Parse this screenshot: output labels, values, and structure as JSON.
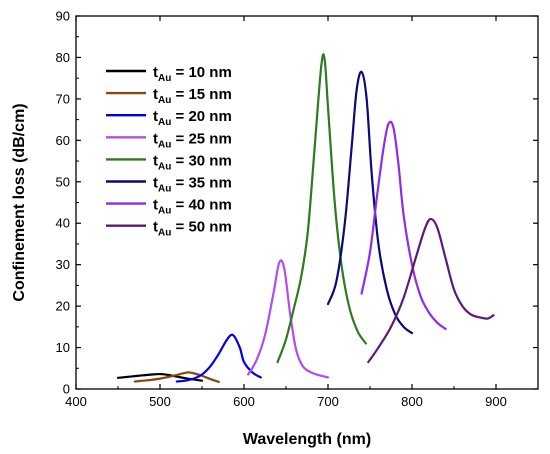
{
  "chart_data": {
    "type": "line",
    "xlabel": "Wavelength (nm)",
    "ylabel": "Confinement loss (dB/cm)",
    "xlim": [
      400,
      950
    ],
    "ylim": [
      0,
      90
    ],
    "xticks": [
      400,
      500,
      600,
      700,
      800,
      900
    ],
    "yticks": [
      0,
      10,
      20,
      30,
      40,
      50,
      60,
      70,
      80,
      90
    ],
    "legend_position": "top-left",
    "series": [
      {
        "name": "t_Au = 10 nm",
        "label_main": "t",
        "label_sub": "Au",
        "label_rest": " = 10 nm",
        "color": "#000000",
        "x": [
          450,
          460,
          470,
          480,
          490,
          500,
          510,
          520,
          530,
          540,
          550
        ],
        "y": [
          2.7,
          2.9,
          3.1,
          3.3,
          3.5,
          3.6,
          3.4,
          3.0,
          2.6,
          2.3,
          2.0
        ]
      },
      {
        "name": "t_Au = 15 nm",
        "label_main": "t",
        "label_sub": "Au",
        "label_rest": " = 15 nm",
        "color": "#8b4513",
        "x": [
          470,
          480,
          490,
          500,
          510,
          520,
          530,
          535,
          540,
          550,
          560,
          570
        ],
        "y": [
          1.8,
          2.0,
          2.2,
          2.5,
          2.9,
          3.4,
          3.9,
          4.0,
          3.8,
          3.2,
          2.4,
          1.7
        ]
      },
      {
        "name": "t_Au = 20 nm",
        "label_main": "t",
        "label_sub": "Au",
        "label_rest": " = 20 nm",
        "color": "#0000e6",
        "x": [
          520,
          530,
          540,
          550,
          560,
          570,
          580,
          587,
          595,
          600,
          610,
          620
        ],
        "y": [
          1.8,
          2.0,
          2.5,
          3.5,
          5.5,
          8.5,
          12.0,
          13.0,
          10.0,
          6.5,
          4.0,
          2.8
        ]
      },
      {
        "name": "t_Au = 25 nm",
        "label_main": "t",
        "label_sub": "Au",
        "label_rest": " = 25 nm",
        "color": "#b24bf3",
        "x": [
          605,
          615,
          625,
          635,
          642,
          648,
          655,
          662,
          670,
          680,
          690,
          700
        ],
        "y": [
          3.5,
          7.0,
          13.0,
          23.0,
          30.5,
          29.0,
          18.0,
          9.5,
          5.5,
          4.0,
          3.3,
          2.8
        ]
      },
      {
        "name": "t_Au = 30 nm",
        "label_main": "t",
        "label_sub": "Au",
        "label_rest": " = 30 nm",
        "color": "#2d7a1f",
        "x": [
          640,
          650,
          660,
          668,
          676,
          684,
          692,
          696,
          700,
          708,
          716,
          725,
          735,
          745
        ],
        "y": [
          6.5,
          12.0,
          20.0,
          27.0,
          38.0,
          58.0,
          78.0,
          79.5,
          68.0,
          45.0,
          30.0,
          20.0,
          14.0,
          11.0
        ]
      },
      {
        "name": "t_Au = 35 nm",
        "label_main": "t",
        "label_sub": "Au",
        "label_rest": " = 35 nm",
        "color": "#0a0a7a",
        "x": [
          700,
          710,
          720,
          728,
          734,
          740,
          746,
          752,
          760,
          770,
          780,
          790,
          800
        ],
        "y": [
          20.5,
          26.0,
          40.0,
          58.0,
          72.0,
          76.5,
          70.0,
          52.0,
          35.0,
          24.0,
          18.0,
          15.0,
          13.5
        ]
      },
      {
        "name": "t_Au = 40 nm",
        "label_main": "t",
        "label_sub": "Au",
        "label_rest": " = 40 nm",
        "color": "#8c2cf0",
        "x": [
          740,
          750,
          758,
          766,
          772,
          778,
          784,
          790,
          800,
          810,
          820,
          830,
          840
        ],
        "y": [
          23.0,
          33.0,
          46.0,
          58.0,
          64.0,
          63.0,
          54.0,
          42.0,
          30.0,
          22.5,
          18.5,
          16.0,
          14.5
        ]
      },
      {
        "name": "t_Au = 50 nm",
        "label_main": "t",
        "label_sub": "Au",
        "label_rest": " = 50 nm",
        "color": "#5a1a7a",
        "x": [
          748,
          760,
          775,
          790,
          805,
          815,
          822,
          830,
          840,
          850,
          860,
          870,
          880,
          890,
          897
        ],
        "y": [
          6.5,
          10.0,
          15.0,
          22.0,
          32.0,
          38.5,
          41.0,
          39.0,
          31.5,
          24.0,
          20.0,
          18.0,
          17.3,
          17.0,
          17.8
        ]
      }
    ]
  }
}
